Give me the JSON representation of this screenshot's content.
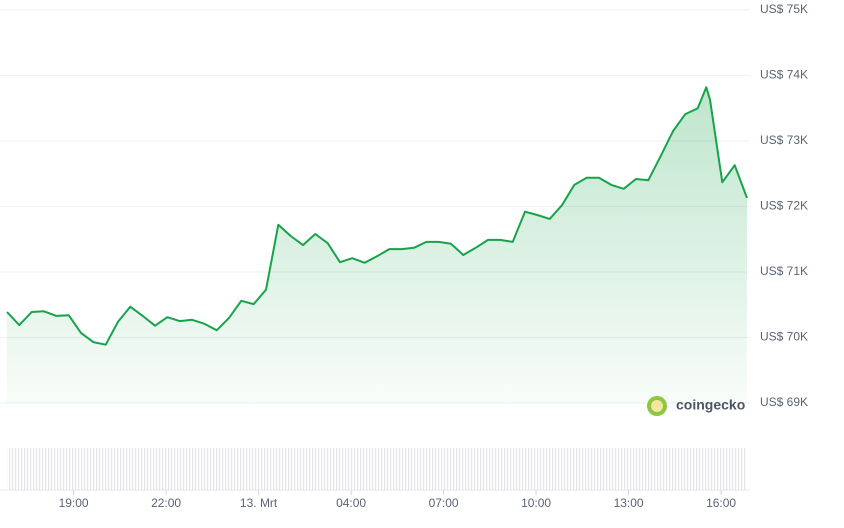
{
  "chart_data": {
    "type": "line",
    "watermark": "coingecko",
    "x": [
      16.84,
      17.24,
      17.64,
      18.04,
      18.44,
      18.84,
      19.24,
      19.64,
      20.04,
      20.44,
      20.84,
      21.24,
      21.64,
      22.04,
      22.44,
      22.84,
      23.24,
      23.64,
      24.04,
      24.44,
      24.84,
      25.24,
      25.64,
      26.04,
      26.44,
      26.84,
      27.24,
      27.64,
      28.04,
      28.44,
      28.84,
      29.24,
      29.64,
      30.04,
      30.44,
      30.84,
      31.24,
      31.64,
      32.04,
      32.44,
      32.84,
      33.24,
      33.64,
      34.04,
      34.44,
      34.84,
      35.24,
      35.64,
      36.04,
      36.44,
      36.84,
      37.24,
      37.64,
      38.04,
      38.44,
      38.84,
      39.24,
      39.52,
      39.64,
      40.04,
      40.44,
      40.84
    ],
    "values": [
      70390,
      70190,
      70390,
      70400,
      70330,
      70340,
      70070,
      69930,
      69890,
      70240,
      70470,
      70330,
      70180,
      70310,
      70250,
      70270,
      70210,
      70110,
      70300,
      70560,
      70510,
      70730,
      71720,
      71550,
      71410,
      71580,
      71440,
      71150,
      71210,
      71140,
      71240,
      71350,
      71350,
      71370,
      71460,
      71460,
      71430,
      71260,
      71370,
      71490,
      71490,
      71460,
      71920,
      71870,
      71810,
      72020,
      72330,
      72440,
      72440,
      72330,
      72270,
      72420,
      72400,
      72770,
      73150,
      73410,
      73500,
      73820,
      73630,
      72370,
      72630,
      72130
    ],
    "color": "#16a34a",
    "xlim": [
      16.84,
      40.84
    ],
    "xticks": [
      {
        "value": 19,
        "label": "19:00"
      },
      {
        "value": 22,
        "label": "22:00"
      },
      {
        "value": 25,
        "label": "13. Mrt"
      },
      {
        "value": 28,
        "label": "04:00"
      },
      {
        "value": 31,
        "label": "07:00"
      },
      {
        "value": 34,
        "label": "10:00"
      },
      {
        "value": 37,
        "label": "13:00"
      },
      {
        "value": 40,
        "label": "16:00"
      }
    ],
    "ylim": [
      69000,
      75000
    ],
    "yticks": [
      {
        "value": 69000,
        "label": "US$ 69K"
      },
      {
        "value": 70000,
        "label": "US$ 70K"
      },
      {
        "value": 71000,
        "label": "US$ 71K"
      },
      {
        "value": 72000,
        "label": "US$ 72K"
      },
      {
        "value": 73000,
        "label": "US$ 73K"
      },
      {
        "value": 74000,
        "label": "US$ 74K"
      },
      {
        "value": 75000,
        "label": "US$ 75K"
      }
    ],
    "grid": true
  }
}
